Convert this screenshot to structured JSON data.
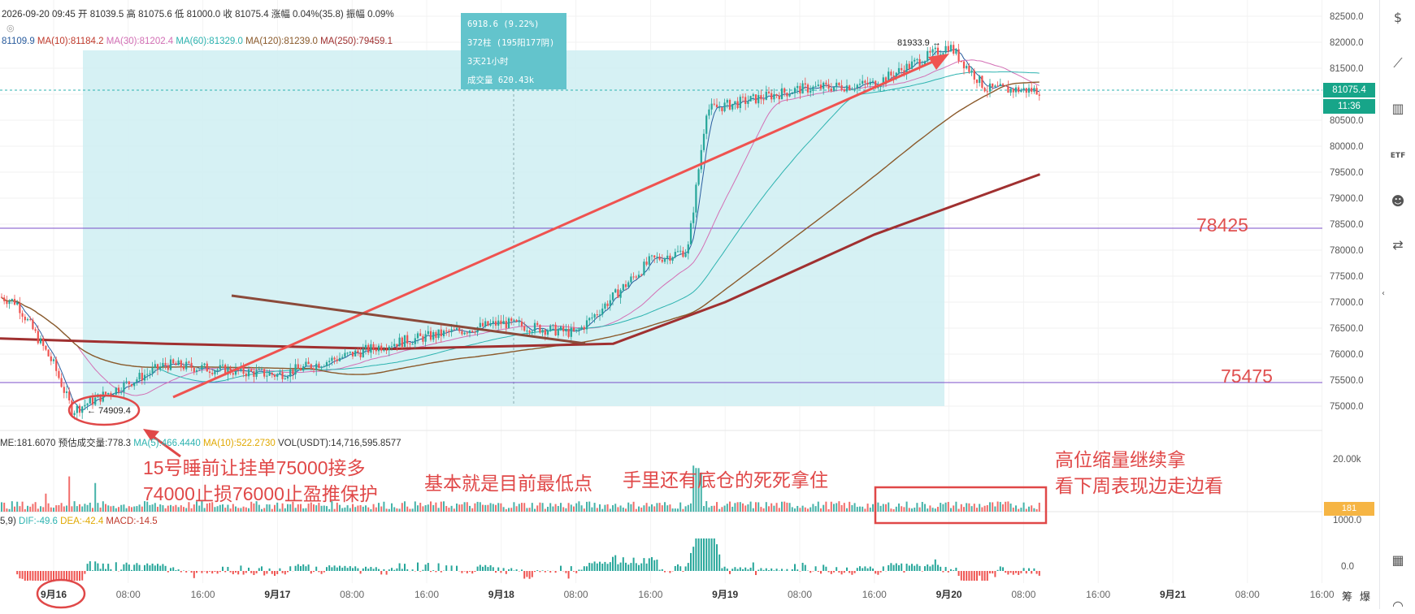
{
  "header": {
    "line1": "2026-09-20 09:45  开 81039.5  高 81075.6  低 81000.0  收 81075.4  涨幅 0.04%(35.8)  振幅 0.09%",
    "ma_line_parts": [
      {
        "text": "81109.9",
        "color": "#2a5d9f"
      },
      {
        "text": "MA(10):81184.2",
        "color": "#c0392b"
      },
      {
        "text": "MA(30):81202.4",
        "color": "#d36fb5"
      },
      {
        "text": "MA(60):81329.0",
        "color": "#2db3b0"
      },
      {
        "text": "MA(120):81239.0",
        "color": "#8b5a2b"
      },
      {
        "text": "MA(250):79459.1",
        "color": "#a03030"
      }
    ]
  },
  "info_box": {
    "line1": "6918.6 (9.22%)",
    "line2": "372柱 (195阳177阴)",
    "line3": "3天21小时",
    "line4": "成交量 620.43k"
  },
  "price_axis": {
    "ticks": [
      "82500.0",
      "82000.0",
      "81500.0",
      "81000.0",
      "80500.0",
      "80000.0",
      "79500.0",
      "79000.0",
      "78500.0",
      "78000.0",
      "77500.0",
      "77000.0",
      "76500.0",
      "76000.0",
      "75500.0",
      "75000.0"
    ],
    "current_price": "81075.4",
    "countdown": "11:36"
  },
  "level_labels": {
    "upper": "78425",
    "lower": "75475"
  },
  "marks": {
    "high": "81933.9",
    "low": "74909.4"
  },
  "volume_panel": {
    "legend_parts": [
      {
        "text": "ME:181.6070",
        "color": "#333"
      },
      {
        "text": "预估成交量:778.3",
        "color": "#333"
      },
      {
        "text": "MA(5):466.4440",
        "color": "#2db3b0"
      },
      {
        "text": "MA(10):522.2730",
        "color": "#e0a800"
      },
      {
        "text": "VOL(USDT):14,716,595.8577",
        "color": "#333"
      }
    ],
    "axis": [
      "20.00k",
      "1000.0"
    ],
    "current": "181"
  },
  "macd_panel": {
    "legend_parts": [
      {
        "text": "5,9)",
        "color": "#333"
      },
      {
        "text": "DIF:-49.6",
        "color": "#2db3b0"
      },
      {
        "text": "DEA:-42.4",
        "color": "#e0a800"
      },
      {
        "text": "MACD:-14.5",
        "color": "#c0392b"
      }
    ],
    "axis": [
      "0.0"
    ]
  },
  "time_axis": [
    "9月16",
    "08:00",
    "16:00",
    "9月17",
    "08:00",
    "16:00",
    "9月18",
    "08:00",
    "16:00",
    "9月19",
    "08:00",
    "16:00",
    "9月20",
    "08:00",
    "16:00",
    "9月21",
    "08:00",
    "16:00"
  ],
  "annotations": {
    "note1_line1": "15号睡前让挂单75000接多",
    "note1_line2": "74000止损76000止盈推保护",
    "note2": "基本就是目前最低点",
    "note3": "手里还有底仓的死死拿住",
    "note4_line1": "高位缩量继续拿",
    "note4_line2": "看下周表现边走边看"
  },
  "toolbar": {
    "icons": [
      "dollar-icon",
      "line-chart-icon",
      "bar-chart-icon",
      "etf-icon",
      "robot-icon",
      "exchange-icon",
      "grid-icon"
    ],
    "bottom_labels": [
      "筹",
      "爆"
    ]
  },
  "chart_data": {
    "type": "candlestick",
    "interval": "15m",
    "period": "2026-09-15 ~ 2026-09-20 09:45",
    "y_range": [
      74700,
      82700
    ],
    "horizontal_levels": [
      78425,
      75475
    ],
    "last_price": 81075.4,
    "range_high": 81933.9,
    "range_low": 74909.4,
    "range_change": "6918.6 (9.22%)",
    "key_points": [
      {
        "t": "09-15 20:00",
        "p": 77000
      },
      {
        "t": "09-16 00:00",
        "p": 75800
      },
      {
        "t": "09-16 02:00",
        "p": 74909.4
      },
      {
        "t": "09-16 12:00",
        "p": 75800
      },
      {
        "t": "09-17 00:00",
        "p": 75600
      },
      {
        "t": "09-17 12:00",
        "p": 76200
      },
      {
        "t": "09-18 00:00",
        "p": 76600
      },
      {
        "t": "09-18 08:00",
        "p": 76400
      },
      {
        "t": "09-18 16:00",
        "p": 77800
      },
      {
        "t": "09-18 20:00",
        "p": 78000
      },
      {
        "t": "09-18 22:00",
        "p": 80700
      },
      {
        "t": "09-19 08:00",
        "p": 81100
      },
      {
        "t": "09-19 16:00",
        "p": 81200
      },
      {
        "t": "09-20 00:00",
        "p": 81933.9
      },
      {
        "t": "09-20 04:00",
        "p": 81100
      },
      {
        "t": "09-20 09:45",
        "p": 81075.4
      }
    ]
  }
}
